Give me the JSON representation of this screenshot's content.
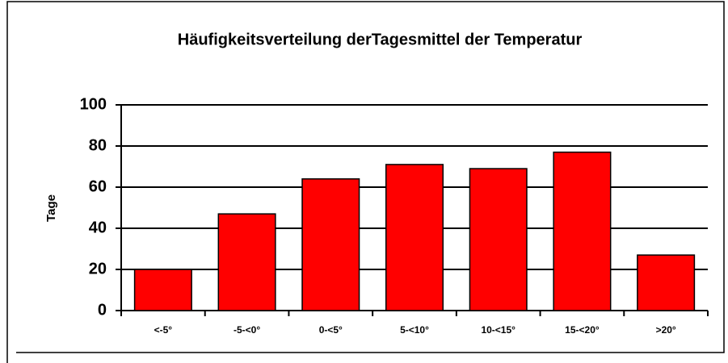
{
  "chart_data": {
    "type": "bar",
    "title": "Häufigkeitsverteilung derTagesmittel der Temperatur",
    "y_label": "Tage",
    "categories": [
      "<-5°",
      "-5-<0°",
      "0-<5°",
      "5-<10°",
      "10-<15°",
      "15-<20°",
      ">20°"
    ],
    "values": [
      20,
      47,
      64,
      71,
      69,
      77,
      27
    ],
    "color": "#ff0000",
    "ylim": [
      0,
      100
    ],
    "yticks": [
      0,
      20,
      40,
      60,
      80,
      100
    ],
    "grid": true
  }
}
